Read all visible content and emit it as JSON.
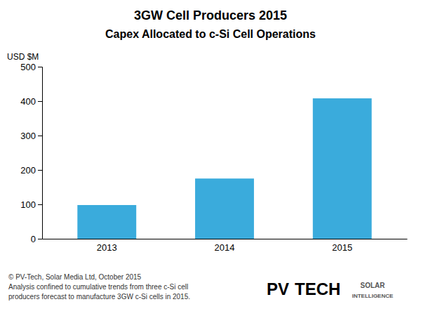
{
  "chart_data": {
    "type": "bar",
    "title": "3GW Cell Producers 2015",
    "subtitle": "Capex Allocated to c-Si Cell Operations",
    "ylabel": "USD $M",
    "categories": [
      "2013",
      "2014",
      "2015"
    ],
    "values": [
      98,
      175,
      408
    ],
    "color": "#3aabdc",
    "ylim": [
      0,
      500
    ],
    "yticks": [
      0,
      100,
      200,
      300,
      400,
      500
    ],
    "grid": false,
    "annotations": [
      "© PV-Tech, Solar Media Ltd, October 2015",
      "Analysis confined to cumulative trends from three c-Si cell",
      "producers forecast to manufacture 3GW c-Si cells in 2015.",
      "PV",
      "TECH",
      "SOLAR",
      "INTELLIGENCE"
    ]
  }
}
